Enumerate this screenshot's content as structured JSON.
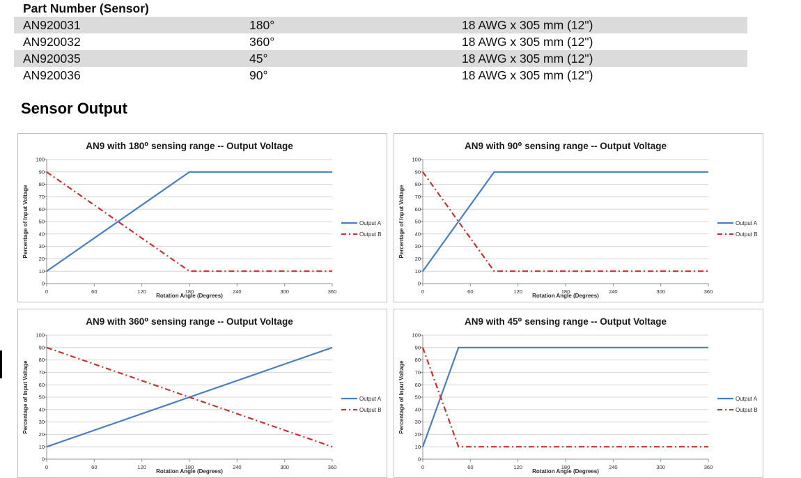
{
  "section_title": "Sensor Output",
  "table": {
    "header": "Part Number (Sensor)",
    "rows": [
      {
        "part": "AN920031",
        "angle": "180°",
        "cable": "18 AWG x 305 mm (12\")"
      },
      {
        "part": "AN920032",
        "angle": "360°",
        "cable": "18 AWG x 305 mm (12\")"
      },
      {
        "part": "AN920035",
        "angle": "45°",
        "cable": "18 AWG x 305 mm (12\")"
      },
      {
        "part": "AN920036",
        "angle": "90°",
        "cable": "18 AWG x 305 mm (12\")"
      }
    ]
  },
  "colors": {
    "output_a": "#4a7ebe",
    "output_b": "#c23334",
    "grid": "#d6d6d6",
    "axis": "#8f8f8f",
    "chart_text": "#2b2b2b",
    "row_shade": "#dbdbdb"
  },
  "chart_data": [
    {
      "type": "line",
      "title": "AN9 with 180⁰ sensing range -- Output Voltage",
      "xlabel": "Rotation Angle (Degrees)",
      "ylabel": "Percentage of Input Voltage",
      "xlim": [
        0,
        360
      ],
      "ylim": [
        0,
        100
      ],
      "xticks": [
        0,
        60,
        120,
        180,
        240,
        300,
        360
      ],
      "yticks": [
        0,
        10,
        20,
        30,
        40,
        50,
        60,
        70,
        80,
        90,
        100
      ],
      "legend_position": "right",
      "grid": true,
      "series": [
        {
          "name": "Output A",
          "style": "solid",
          "color_key": "output_a",
          "points": [
            [
              0,
              10
            ],
            [
              180,
              90
            ],
            [
              360,
              90
            ]
          ]
        },
        {
          "name": "Output B",
          "style": "dashdot",
          "color_key": "output_b",
          "points": [
            [
              0,
              90
            ],
            [
              180,
              10
            ],
            [
              360,
              10
            ]
          ]
        }
      ]
    },
    {
      "type": "line",
      "title": "AN9 with 90⁰ sensing range -- Output Voltage",
      "xlabel": "Rotation Angle (Degrees)",
      "ylabel": "Percentage of Input Voltage",
      "xlim": [
        0,
        360
      ],
      "ylim": [
        0,
        100
      ],
      "xticks": [
        0,
        60,
        120,
        180,
        240,
        300,
        360
      ],
      "yticks": [
        0,
        10,
        20,
        30,
        40,
        50,
        60,
        70,
        80,
        90,
        100
      ],
      "legend_position": "right",
      "grid": true,
      "series": [
        {
          "name": "Output A",
          "style": "solid",
          "color_key": "output_a",
          "points": [
            [
              0,
              10
            ],
            [
              90,
              90
            ],
            [
              360,
              90
            ]
          ]
        },
        {
          "name": "Output B",
          "style": "dashdot",
          "color_key": "output_b",
          "points": [
            [
              0,
              90
            ],
            [
              90,
              10
            ],
            [
              360,
              10
            ]
          ]
        }
      ]
    },
    {
      "type": "line",
      "title": "AN9 with 360⁰ sensing range -- Output Voltage",
      "xlabel": "Rotation Angle (Degrees)",
      "ylabel": "Percentage of Input Voltage",
      "xlim": [
        0,
        360
      ],
      "ylim": [
        0,
        100
      ],
      "xticks": [
        0,
        60,
        120,
        180,
        240,
        300,
        360
      ],
      "yticks": [
        0,
        10,
        20,
        30,
        40,
        50,
        60,
        70,
        80,
        90,
        100
      ],
      "legend_position": "right",
      "grid": true,
      "series": [
        {
          "name": "Output A",
          "style": "solid",
          "color_key": "output_a",
          "points": [
            [
              0,
              10
            ],
            [
              360,
              90
            ]
          ]
        },
        {
          "name": "Output B",
          "style": "dashdot",
          "color_key": "output_b",
          "points": [
            [
              0,
              90
            ],
            [
              360,
              10
            ]
          ]
        }
      ]
    },
    {
      "type": "line",
      "title": "AN9 with 45⁰ sensing range -- Output Voltage",
      "xlabel": "Rotation Angle (Degrees)",
      "ylabel": "Percentage of Input Voltage",
      "xlim": [
        0,
        360
      ],
      "ylim": [
        0,
        100
      ],
      "xticks": [
        0,
        60,
        120,
        180,
        240,
        300,
        360
      ],
      "yticks": [
        0,
        10,
        20,
        30,
        40,
        50,
        60,
        70,
        80,
        90,
        100
      ],
      "legend_position": "right",
      "grid": true,
      "series": [
        {
          "name": "Output A",
          "style": "solid",
          "color_key": "output_a",
          "points": [
            [
              0,
              10
            ],
            [
              45,
              90
            ],
            [
              360,
              90
            ]
          ]
        },
        {
          "name": "Output B",
          "style": "dashdot",
          "color_key": "output_b",
          "points": [
            [
              0,
              90
            ],
            [
              45,
              10
            ],
            [
              360,
              10
            ]
          ]
        }
      ]
    }
  ]
}
